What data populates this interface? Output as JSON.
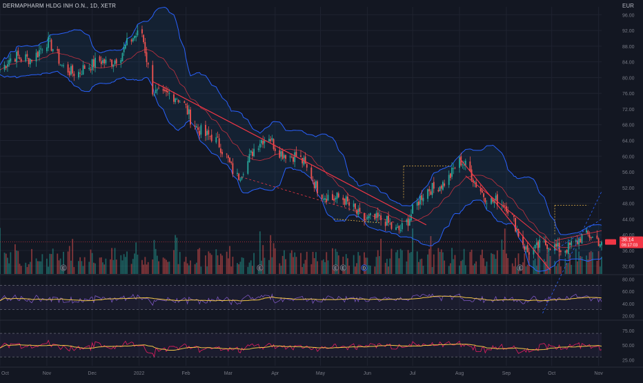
{
  "header": {
    "title": "DERMAPHARM HLDG INH O.N., 1D, XETR",
    "currency": "EUR"
  },
  "colors": {
    "background": "#131722",
    "up": "#26a69a",
    "down": "#ef5350",
    "bollinger": "#2962ff",
    "ma": "#f23645",
    "trendline": "#f23645",
    "osc1_fast": "#7e57c2",
    "osc1_slow": "#f7c948",
    "osc2_fast": "#e91e63",
    "osc2_slow": "#f7c948",
    "guide": "#e8b54a",
    "grid": "#1f2330",
    "last_price_tag": "#f23645"
  },
  "price_axis": {
    "ticks": [
      "96.00",
      "92.00",
      "88.00",
      "84.00",
      "80.00",
      "76.00",
      "72.00",
      "68.00",
      "64.00",
      "60.00",
      "56.00",
      "52.00",
      "48.00",
      "44.00",
      "40.00",
      "36.00",
      "32.00"
    ],
    "last_price_label": "38.14",
    "countdown_label": "06:17:03"
  },
  "osc1_axis": {
    "ticks": [
      "80.00",
      "60.00",
      "40.00",
      "20.00"
    ]
  },
  "osc2_axis": {
    "ticks": [
      "75.00",
      "50.00",
      "25.00"
    ]
  },
  "time_axis": {
    "labels": [
      "Oct",
      "Nov",
      "Dec",
      "2022",
      "Feb",
      "Mar",
      "Apr",
      "May",
      "Jun",
      "Jul",
      "Aug",
      "Sep",
      "Oct",
      "Nov"
    ]
  },
  "event_markers": [
    "E",
    "E",
    "E",
    "E",
    "D",
    "E"
  ],
  "chart_data": [
    {
      "type": "candlestick",
      "title": "DERMAPHARM HLDG INH O.N., 1D, XETR",
      "ylabel": "EUR",
      "ylim": [
        30,
        98
      ],
      "x_range": [
        "2021-10-01",
        "2022-11-03"
      ],
      "key_points": {
        "dates": [
          "2021-10-01",
          "2021-11-01",
          "2021-11-10",
          "2021-12-01",
          "2022-01-03",
          "2022-01-10",
          "2022-02-01",
          "2022-03-07",
          "2022-03-28",
          "2022-04-20",
          "2022-05-10",
          "2022-05-25",
          "2022-06-10",
          "2022-06-20",
          "2022-07-01",
          "2022-07-20",
          "2022-08-01",
          "2022-08-10",
          "2022-09-01",
          "2022-09-15",
          "2022-10-03",
          "2022-10-15",
          "2022-11-01"
        ],
        "close": [
          82.0,
          88.5,
          83.0,
          82.0,
          90.5,
          78.0,
          72.0,
          56.0,
          65.0,
          57.0,
          48.5,
          46.5,
          42.5,
          41.5,
          46.0,
          54.0,
          58.0,
          54.0,
          46.0,
          37.0,
          36.0,
          38.8,
          38.14
        ]
      },
      "last_price": 38.14,
      "overlays": [
        "Bollinger Bands",
        "Moving Average"
      ]
    },
    {
      "type": "bar",
      "name": "Volume",
      "note_values": "relative"
    },
    {
      "type": "line",
      "ylim": [
        15,
        85
      ],
      "ticks": [
        20,
        40,
        60,
        80
      ]
    },
    {
      "type": "line",
      "ylim": [
        15,
        90
      ],
      "ticks": [
        25,
        50,
        75
      ]
    }
  ]
}
